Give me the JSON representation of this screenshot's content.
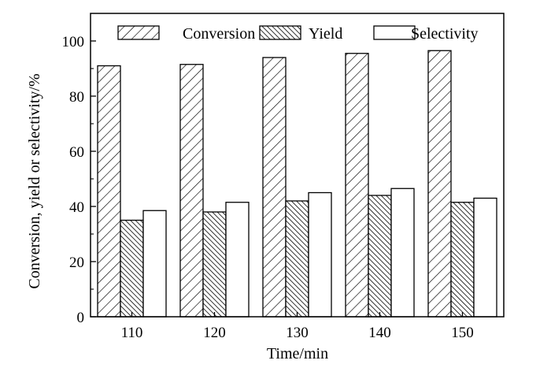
{
  "chart_data": {
    "type": "bar",
    "categories": [
      "110",
      "120",
      "130",
      "140",
      "150"
    ],
    "series": [
      {
        "name": "Conversion",
        "values": [
          91,
          91.5,
          94,
          95.5,
          96.5
        ]
      },
      {
        "name": "Yield",
        "values": [
          35,
          38,
          42,
          44,
          41.5
        ]
      },
      {
        "name": "Selectivity",
        "values": [
          38.5,
          41.5,
          45,
          46.5,
          43
        ]
      }
    ],
    "title": "",
    "xlabel": "Time/min",
    "ylabel": "Conversion, yield or selectivity/%",
    "ylim": [
      0,
      110
    ],
    "yticks": [
      "0",
      "20",
      "40",
      "60",
      "80",
      "100"
    ],
    "legend": {
      "placement": "top",
      "style": "horizontal"
    },
    "patterns": [
      "diagonal-hatch",
      "dense-diagonal-hatch",
      "solid-white"
    ],
    "grid": false
  }
}
